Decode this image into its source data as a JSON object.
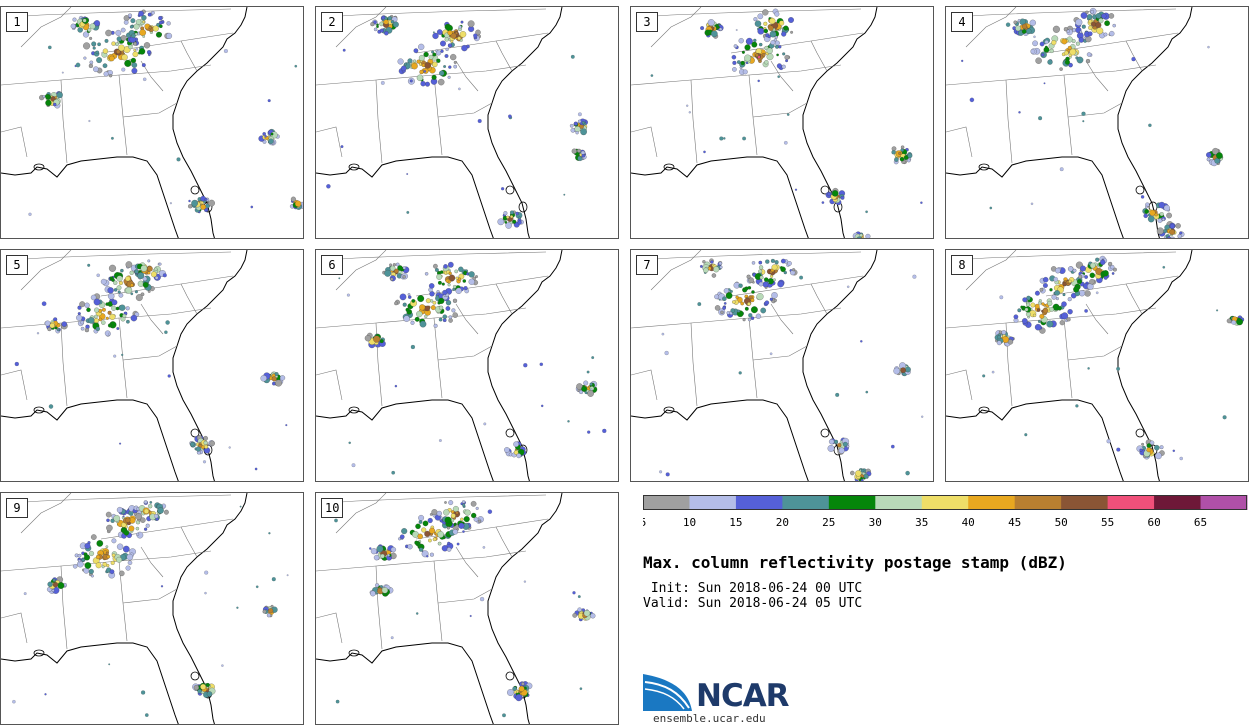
{
  "panels": [
    {
      "label": "1"
    },
    {
      "label": "2"
    },
    {
      "label": "3"
    },
    {
      "label": "4"
    },
    {
      "label": "5"
    },
    {
      "label": "6"
    },
    {
      "label": "7"
    },
    {
      "label": "8"
    },
    {
      "label": "9"
    },
    {
      "label": "10"
    }
  ],
  "colorbar": {
    "ticks": [
      "5",
      "10",
      "15",
      "20",
      "25",
      "30",
      "35",
      "40",
      "45",
      "50",
      "55",
      "60",
      "65"
    ],
    "colors": [
      "#a0a0a0",
      "#b4bde8",
      "#5560d8",
      "#4e9398",
      "#05860a",
      "#b8dab8",
      "#eede68",
      "#e8a820",
      "#b87f30",
      "#8a5535",
      "#f0507a",
      "#6e1838",
      "#b050a8"
    ]
  },
  "title": "Max. column reflectivity postage stamp (dBZ)",
  "init": " Init: Sun 2018-06-24 00 UTC",
  "valid": "Valid: Sun 2018-06-24 05 UTC",
  "logo": {
    "name": "NCAR",
    "url": "ensemble.ucar.edu"
  }
}
